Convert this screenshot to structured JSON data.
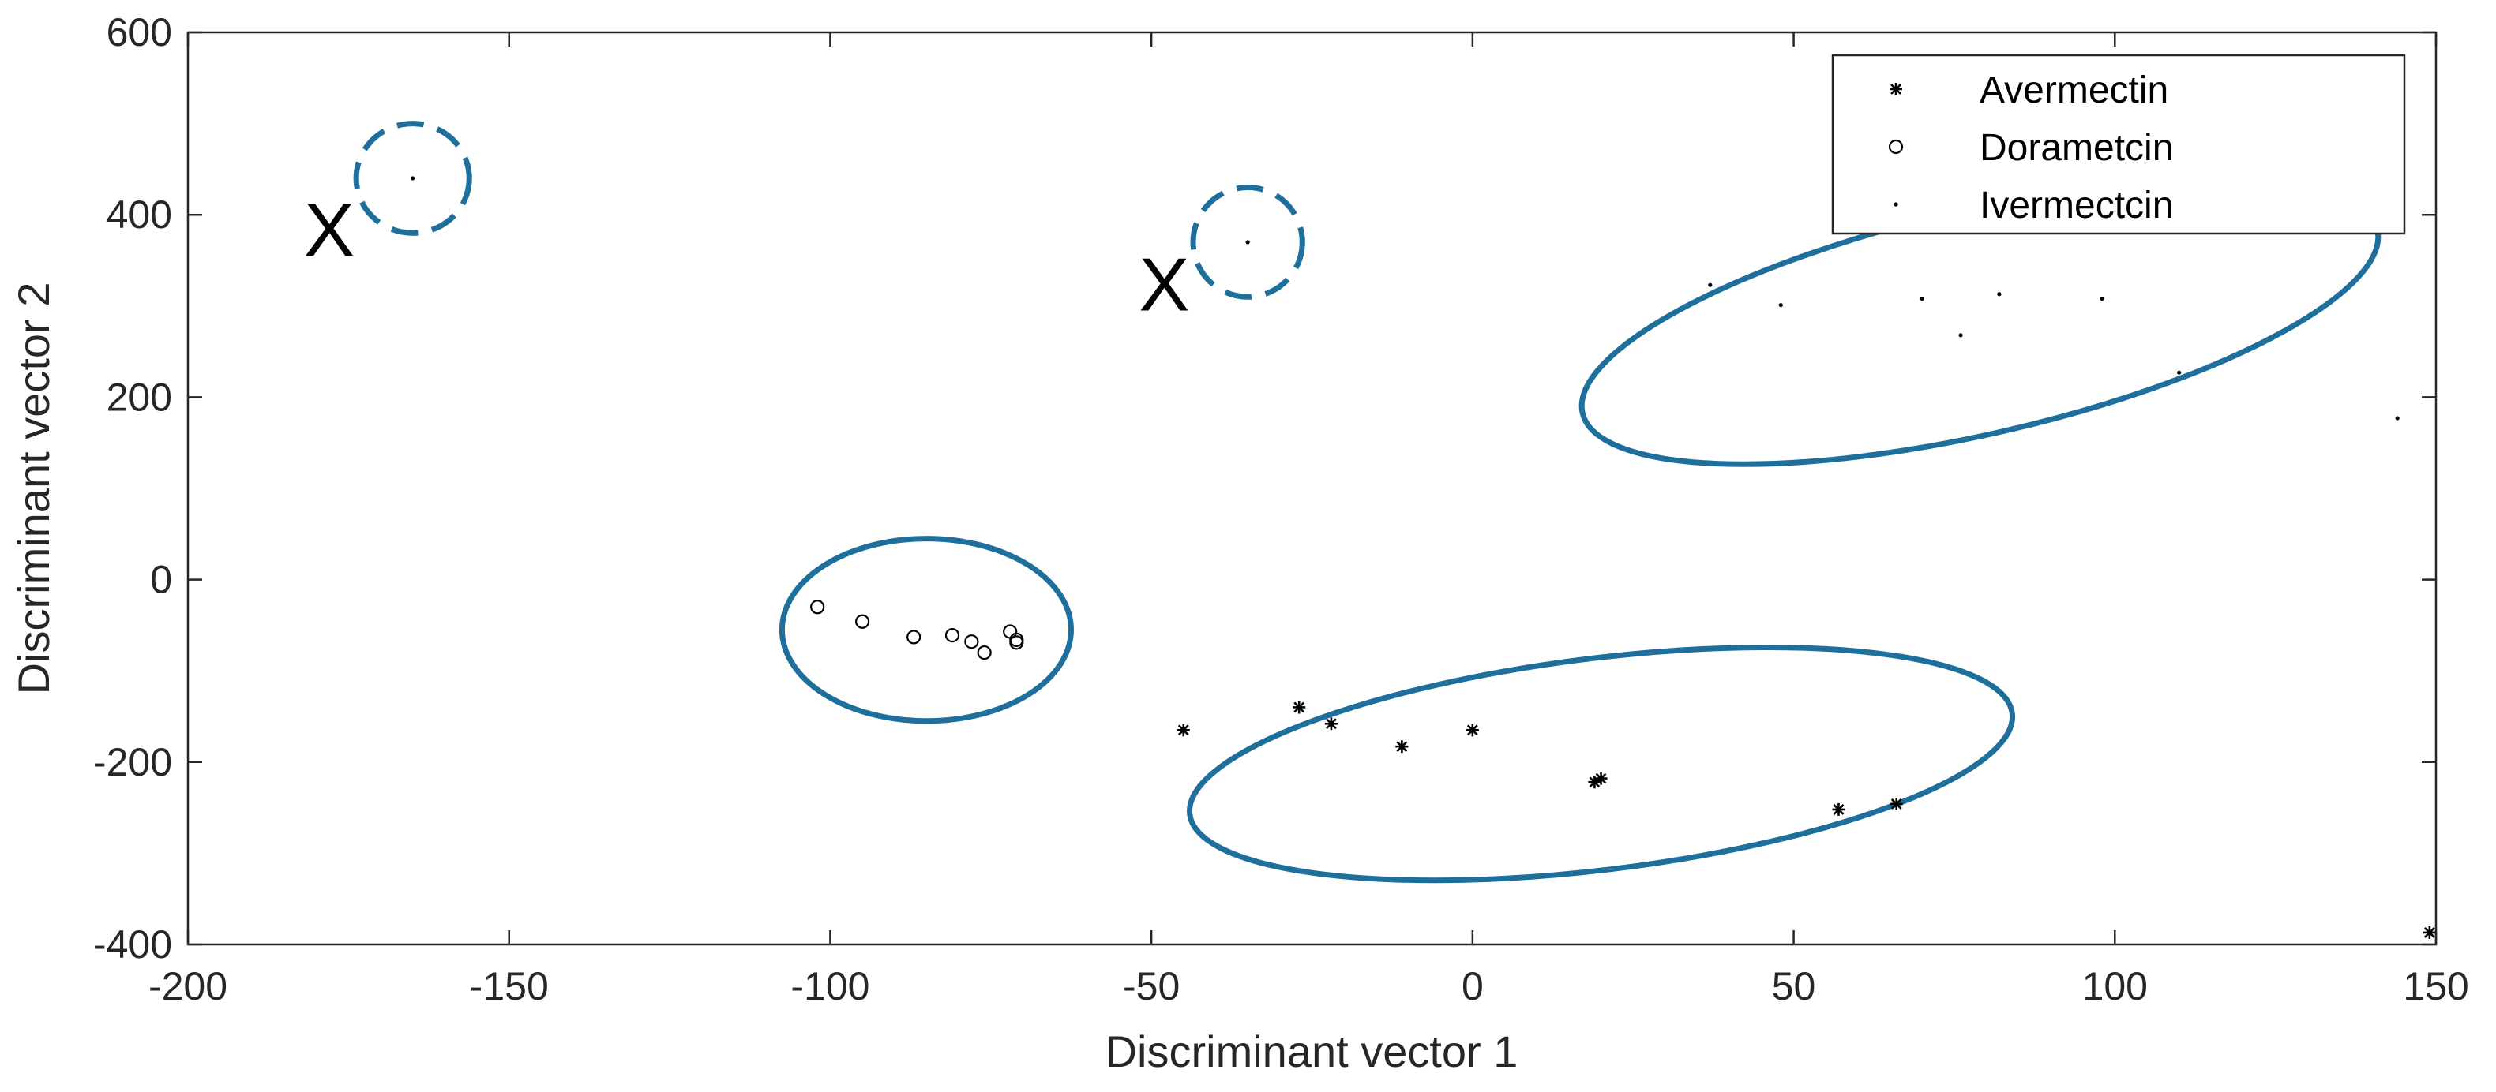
{
  "chart_data": {
    "type": "scatter",
    "title": "",
    "xlabel": "Discriminant vector 1",
    "ylabel": "Discriminant vector 2",
    "xlim": [
      -200,
      150
    ],
    "ylim": [
      -400,
      600
    ],
    "xticks": [
      -200,
      -150,
      -100,
      -50,
      0,
      50,
      100,
      150
    ],
    "yticks": [
      -400,
      -200,
      0,
      200,
      400,
      600
    ],
    "grid": false,
    "legend_position": "top-right",
    "series": [
      {
        "name": "Avermectin",
        "marker": "star",
        "color": "#000000",
        "points": [
          [
            -45,
            -165
          ],
          [
            -27,
            -140
          ],
          [
            -22,
            -158
          ],
          [
            -11,
            -183
          ],
          [
            0,
            -165
          ],
          [
            19,
            -222
          ],
          [
            20,
            -218
          ],
          [
            57,
            -252
          ],
          [
            66,
            -246
          ],
          [
            149,
            -387
          ]
        ]
      },
      {
        "name": "Dorametcin",
        "marker": "circle",
        "color": "#000000",
        "points": [
          [
            -102,
            -30
          ],
          [
            -95,
            -46
          ],
          [
            -87,
            -63
          ],
          [
            -81,
            -61
          ],
          [
            -78,
            -68
          ],
          [
            -76,
            -80
          ],
          [
            -72,
            -57
          ],
          [
            -71,
            -66
          ],
          [
            -71,
            -69
          ]
        ]
      },
      {
        "name": "Ivermectcin",
        "marker": "point",
        "color": "#000000",
        "points": [
          [
            -165,
            440
          ],
          [
            -35,
            370
          ],
          [
            37,
            323
          ],
          [
            48,
            301
          ],
          [
            70,
            308
          ],
          [
            76,
            268
          ],
          [
            82,
            313
          ],
          [
            98,
            308
          ],
          [
            110,
            227
          ],
          [
            144,
            177
          ]
        ]
      }
    ],
    "annotations": {
      "cluster_color": "#1f6f9c",
      "outlier_marker_text": "X",
      "outliers": [
        {
          "label": "X",
          "circle_center": [
            -165,
            440
          ],
          "text_at": [
            -178,
            355
          ]
        },
        {
          "label": "X",
          "circle_center": [
            -35,
            370
          ],
          "text_at": [
            -48,
            295
          ]
        }
      ],
      "dashed_circles": [
        {
          "cx": -165,
          "cy": 440,
          "rx": 8.8,
          "ry": 60
        },
        {
          "cx": -35,
          "cy": 370,
          "rx": 8.5,
          "ry": 60
        }
      ],
      "cluster_ellipses": [
        {
          "name": "dorametcin-cluster",
          "cx": -85,
          "cy": -55,
          "rx": 22.5,
          "ry": 100,
          "angle_deg": 0
        },
        {
          "name": "avermectin-cluster",
          "cx": 20,
          "cy": -202,
          "rx": 64.5,
          "ry": 116,
          "angle_deg": -7
        },
        {
          "name": "ivermectcin-cluster",
          "cx": 79,
          "cy": 283,
          "rx": 63.5,
          "ry": 123,
          "angle_deg": -13
        }
      ]
    }
  }
}
